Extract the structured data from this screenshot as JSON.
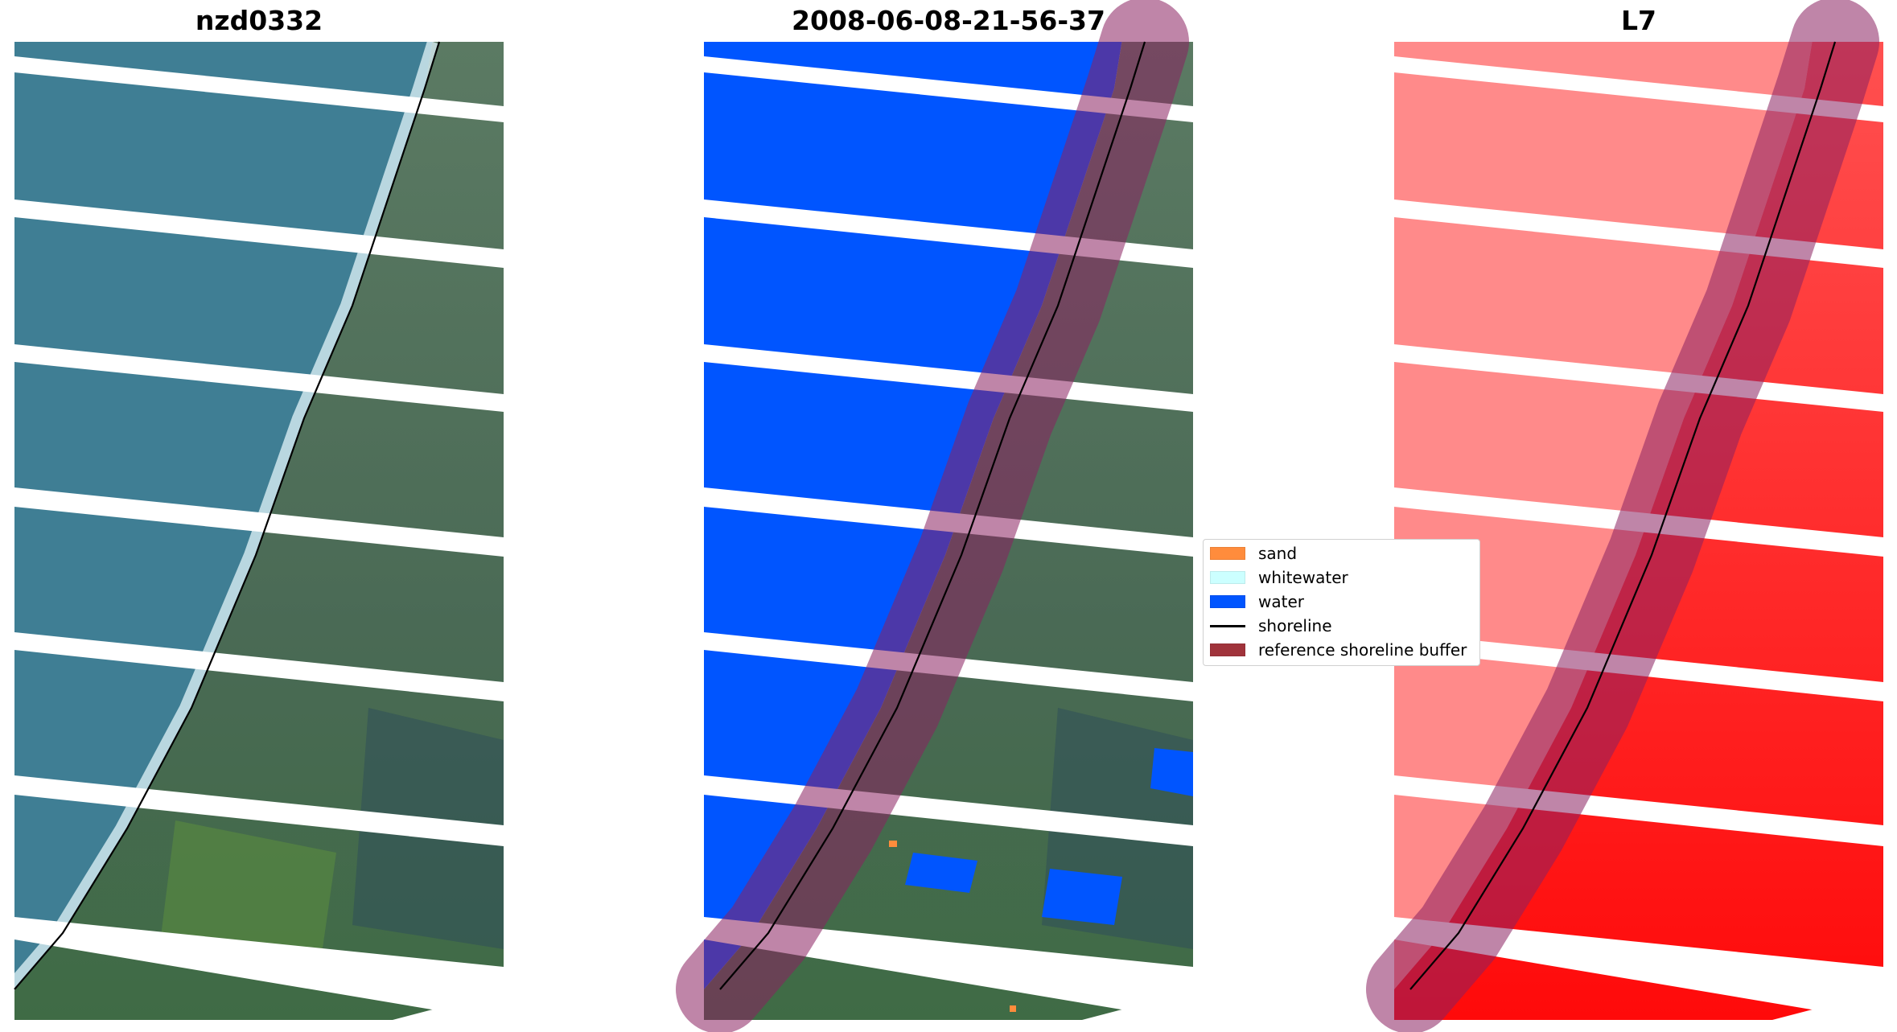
{
  "panels": [
    {
      "title": "nzd0332"
    },
    {
      "title": "2008-06-08-21-56-37"
    },
    {
      "title": "L7"
    }
  ],
  "legend": [
    {
      "label": "sand",
      "color": "#ff8c3c",
      "kind": "patch"
    },
    {
      "label": "whitewater",
      "color": "#ccffff",
      "kind": "patch"
    },
    {
      "label": "water",
      "color": "#0055ff",
      "kind": "patch"
    },
    {
      "label": "shoreline",
      "color": "#000000",
      "kind": "line"
    },
    {
      "label": "reference shoreline buffer",
      "color": "#a0333b",
      "kind": "patch"
    }
  ],
  "colors": {
    "ocean": "#3f7e94",
    "land": "#55704f",
    "water_class": "#0055ff",
    "buffer": "#8a2060",
    "red_low": "#ff8a8a",
    "red_high": "#ff1010"
  }
}
